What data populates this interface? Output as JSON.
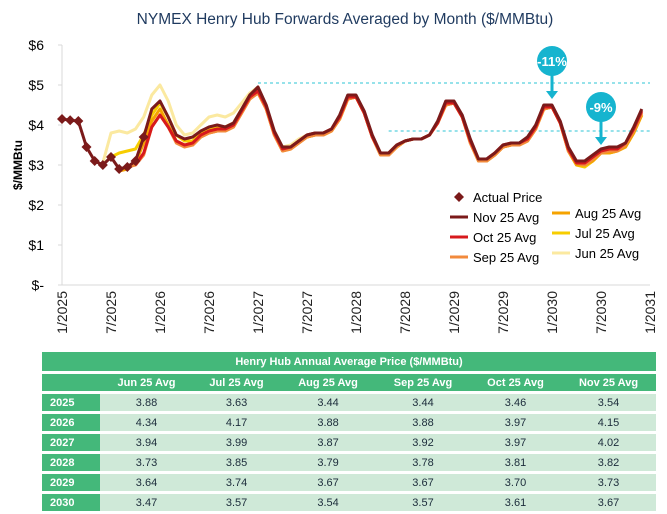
{
  "chart_data": {
    "type": "line",
    "title": "NYMEX Henry Hub Forwards Averaged by Month ($/MMBtu)",
    "xlabel": "",
    "ylabel": "$/MMBtu",
    "ylim": [
      0,
      6
    ],
    "yticks": [
      "$-",
      "$1",
      "$2",
      "$3",
      "$4",
      "$5",
      "$6"
    ],
    "ytick_values": [
      0,
      1,
      2,
      3,
      4,
      5,
      6
    ],
    "xticks": [
      "1/2025",
      "7/2025",
      "1/2026",
      "7/2026",
      "1/2027",
      "7/2027",
      "1/2028",
      "7/2028",
      "1/2029",
      "7/2029",
      "1/2030",
      "7/2030",
      "1/2031"
    ],
    "xtick_months": [
      0,
      6,
      12,
      18,
      24,
      30,
      36,
      42,
      48,
      54,
      60,
      66,
      72
    ],
    "x_unit": "months since 1/2025",
    "grid": false,
    "legend_position": "bottom-right",
    "actual_price": {
      "name": "Actual Price",
      "color": "#7b1a1a",
      "months": [
        0,
        1,
        2,
        3,
        4,
        5,
        6,
        7,
        8,
        9,
        10
      ],
      "values": [
        4.15,
        4.12,
        4.1,
        3.45,
        3.1,
        3.0,
        3.2,
        2.9,
        2.95,
        3.1,
        3.7
      ]
    },
    "series": [
      {
        "name": "Jun 25 Avg",
        "color": "#fbe9a0",
        "start_month": 5,
        "values": [
          3.05,
          3.8,
          3.85,
          3.8,
          3.9,
          4.2,
          4.75,
          5.0,
          4.6,
          4.0,
          3.75,
          3.8,
          4.0,
          4.2,
          4.25,
          4.2,
          4.3,
          4.55,
          4.8,
          4.95,
          4.45,
          3.85,
          3.45,
          3.5,
          3.65,
          3.75,
          3.8,
          3.8,
          3.85,
          4.15,
          4.65,
          4.7,
          4.3,
          3.7,
          3.3,
          3.3,
          3.5,
          3.6,
          3.65,
          3.65,
          3.75,
          4.05,
          4.5,
          4.55,
          4.2,
          3.6,
          3.1,
          3.1,
          3.3,
          3.45,
          3.5,
          3.5,
          3.6,
          3.9,
          4.4,
          4.45,
          4.05,
          3.4,
          3.0,
          3.0,
          3.15,
          3.3,
          3.35,
          3.35,
          3.5,
          3.8,
          4.3
        ]
      },
      {
        "name": "Jul 25 Avg",
        "color": "#f7cd00",
        "start_month": 6,
        "values": [
          3.2,
          3.3,
          3.35,
          3.4,
          3.75,
          4.25,
          4.55,
          4.2,
          3.75,
          3.6,
          3.6,
          3.8,
          3.9,
          3.95,
          3.95,
          4.05,
          4.4,
          4.7,
          4.9,
          4.45,
          3.8,
          3.4,
          3.45,
          3.6,
          3.7,
          3.75,
          3.75,
          3.85,
          4.15,
          4.65,
          4.7,
          4.3,
          3.7,
          3.3,
          3.3,
          3.45,
          3.6,
          3.65,
          3.65,
          3.75,
          4.05,
          4.5,
          4.55,
          4.2,
          3.6,
          3.1,
          3.1,
          3.25,
          3.45,
          3.5,
          3.5,
          3.6,
          3.9,
          4.4,
          4.45,
          4.05,
          3.35,
          3.0,
          2.95,
          3.1,
          3.3,
          3.3,
          3.35,
          3.45,
          3.8,
          4.25
        ]
      },
      {
        "name": "Aug 25 Avg",
        "color": "#f5a300",
        "start_month": 7,
        "values": [
          2.85,
          2.9,
          3.05,
          3.55,
          4.1,
          4.4,
          4.0,
          3.6,
          3.5,
          3.5,
          3.7,
          3.8,
          3.85,
          3.85,
          3.95,
          4.3,
          4.65,
          4.8,
          4.4,
          3.75,
          3.35,
          3.4,
          3.55,
          3.7,
          3.75,
          3.75,
          3.85,
          4.15,
          4.65,
          4.7,
          4.3,
          3.7,
          3.25,
          3.25,
          3.45,
          3.6,
          3.65,
          3.65,
          3.75,
          4.05,
          4.5,
          4.55,
          4.2,
          3.55,
          3.1,
          3.1,
          3.25,
          3.45,
          3.5,
          3.5,
          3.6,
          3.9,
          4.4,
          4.45,
          4.05,
          3.35,
          3.0,
          3.0,
          3.1,
          3.3,
          3.3,
          3.35,
          3.45,
          3.8,
          4.25
        ]
      },
      {
        "name": "Sep 25 Avg",
        "color": "#f28a3c",
        "start_month": 8,
        "values": [
          2.95,
          3.0,
          3.25,
          3.95,
          4.25,
          3.95,
          3.55,
          3.45,
          3.5,
          3.7,
          3.8,
          3.85,
          3.85,
          3.95,
          4.3,
          4.65,
          4.8,
          4.4,
          3.75,
          3.35,
          3.4,
          3.55,
          3.7,
          3.75,
          3.75,
          3.85,
          4.15,
          4.65,
          4.7,
          4.3,
          3.7,
          3.25,
          3.25,
          3.45,
          3.6,
          3.65,
          3.65,
          3.75,
          4.05,
          4.5,
          4.55,
          4.2,
          3.55,
          3.1,
          3.1,
          3.25,
          3.45,
          3.5,
          3.5,
          3.6,
          3.9,
          4.4,
          4.45,
          4.05,
          3.35,
          3.05,
          3.0,
          3.15,
          3.3,
          3.35,
          3.35,
          3.5,
          3.85,
          4.3
        ]
      },
      {
        "name": "Oct 25 Avg",
        "color": "#d7191c",
        "start_month": 9,
        "values": [
          3.0,
          3.3,
          3.95,
          4.25,
          3.95,
          3.6,
          3.5,
          3.55,
          3.75,
          3.85,
          3.9,
          3.9,
          4.0,
          4.35,
          4.7,
          4.85,
          4.45,
          3.8,
          3.4,
          3.45,
          3.6,
          3.75,
          3.8,
          3.8,
          3.9,
          4.2,
          4.7,
          4.7,
          4.3,
          3.7,
          3.3,
          3.3,
          3.5,
          3.6,
          3.65,
          3.65,
          3.75,
          4.05,
          4.55,
          4.55,
          4.2,
          3.6,
          3.15,
          3.15,
          3.3,
          3.5,
          3.55,
          3.55,
          3.65,
          3.95,
          4.45,
          4.45,
          4.05,
          3.4,
          3.05,
          3.05,
          3.2,
          3.35,
          3.4,
          3.4,
          3.55,
          3.9,
          4.35
        ]
      },
      {
        "name": "Nov 25 Avg",
        "color": "#7b1a1a",
        "start_month": 10,
        "values": [
          3.7,
          4.4,
          4.6,
          4.2,
          3.75,
          3.65,
          3.7,
          3.85,
          3.95,
          4.0,
          3.95,
          4.05,
          4.4,
          4.75,
          4.95,
          4.5,
          3.85,
          3.45,
          3.45,
          3.6,
          3.75,
          3.8,
          3.8,
          3.9,
          4.25,
          4.75,
          4.75,
          4.35,
          3.75,
          3.3,
          3.3,
          3.5,
          3.6,
          3.65,
          3.65,
          3.75,
          4.1,
          4.6,
          4.6,
          4.25,
          3.65,
          3.15,
          3.15,
          3.3,
          3.5,
          3.55,
          3.55,
          3.7,
          4.0,
          4.5,
          4.5,
          4.1,
          3.45,
          3.1,
          3.1,
          3.25,
          3.4,
          3.45,
          3.45,
          3.55,
          3.95,
          4.4
        ]
      }
    ],
    "reference_lines": [
      {
        "value": 5.05,
        "from_month": 24,
        "to_month": 72,
        "color": "#2ec4d6",
        "style": "dashed"
      },
      {
        "value": 3.85,
        "from_month": 40,
        "to_month": 72,
        "color": "#2ec4d6",
        "style": "dashed"
      }
    ],
    "annotations": [
      {
        "text": "-11%",
        "month": 60,
        "value": 4.6,
        "color": "#16b4cf"
      },
      {
        "text": "-9%",
        "month": 66,
        "value": 3.45,
        "color": "#16b4cf"
      }
    ]
  },
  "legend": {
    "col1": [
      "Actual Price",
      "Nov 25 Avg",
      "Oct 25 Avg",
      "Sep 25 Avg"
    ],
    "col2": [
      "Aug 25 Avg",
      "Jul 25 Avg",
      "Jun 25 Avg"
    ]
  },
  "table": {
    "title": "Henry Hub Annual Average Price ($/MMBtu)",
    "columns": [
      "Jun 25 Avg",
      "Jul 25 Avg",
      "Aug 25 Avg",
      "Sep 25 Avg",
      "Oct 25 Avg",
      "Nov 25 Avg"
    ],
    "rows": [
      {
        "year": "2025",
        "values": [
          "3.88",
          "3.63",
          "3.44",
          "3.44",
          "3.46",
          "3.54"
        ]
      },
      {
        "year": "2026",
        "values": [
          "4.34",
          "4.17",
          "3.88",
          "3.88",
          "3.97",
          "4.15"
        ]
      },
      {
        "year": "2027",
        "values": [
          "3.94",
          "3.99",
          "3.87",
          "3.92",
          "3.97",
          "4.02"
        ]
      },
      {
        "year": "2028",
        "values": [
          "3.73",
          "3.85",
          "3.79",
          "3.78",
          "3.81",
          "3.82"
        ]
      },
      {
        "year": "2029",
        "values": [
          "3.64",
          "3.74",
          "3.67",
          "3.67",
          "3.70",
          "3.73"
        ]
      },
      {
        "year": "2030",
        "values": [
          "3.47",
          "3.57",
          "3.54",
          "3.57",
          "3.61",
          "3.67"
        ]
      }
    ]
  }
}
